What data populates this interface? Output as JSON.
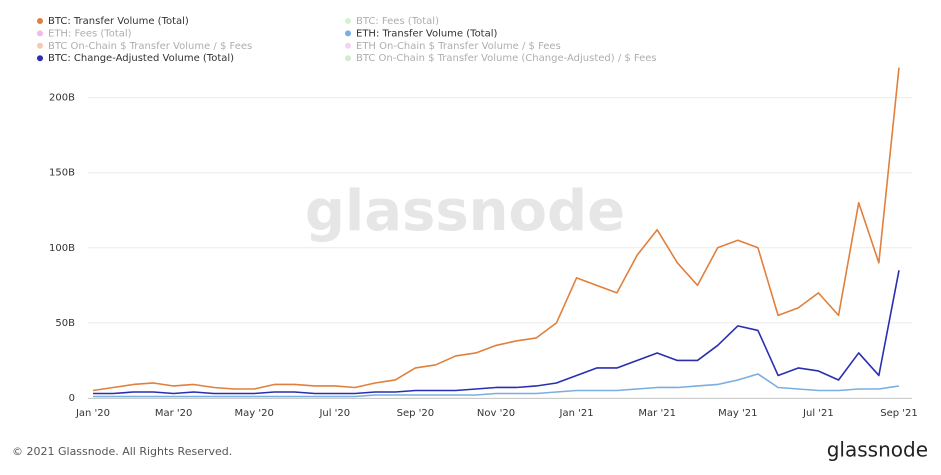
{
  "chart_data": {
    "type": "line",
    "watermark": "glassnode",
    "credit": "© 2021 Glassnode. All Rights Reserved.",
    "logo": "glassnode",
    "categories": [
      "Jan '20",
      null,
      null,
      null,
      "Mar '20",
      null,
      null,
      null,
      "May '20",
      null,
      null,
      null,
      "Jul '20",
      null,
      null,
      null,
      "Sep '20",
      null,
      null,
      null,
      "Nov '20",
      null,
      null,
      null,
      "Jan '21",
      null,
      null,
      null,
      "Mar '21",
      null,
      null,
      null,
      "May '21",
      null,
      null,
      null,
      "Jul '21",
      null,
      null,
      null,
      "Sep '21"
    ],
    "series": [
      {
        "name": "BTC: Transfer Volume (Total)",
        "color": "#e0803c",
        "values": [
          5,
          7,
          9,
          10,
          8,
          9,
          7,
          6,
          6,
          9,
          9,
          8,
          8,
          7,
          10,
          12,
          20,
          22,
          28,
          30,
          35,
          38,
          40,
          50,
          80,
          75,
          70,
          95,
          112,
          90,
          75,
          100,
          105,
          100,
          55,
          60,
          70,
          55,
          130,
          90,
          220
        ]
      },
      {
        "name": "BTC: Fees (Total)",
        "color": "#90e080",
        "hidden": true
      },
      {
        "name": "ETH: Fees (Total)",
        "color": "#d850d8",
        "hidden": true
      },
      {
        "name": "ETH: Transfer Volume (Total)",
        "color": "#7aaee0",
        "values": [
          1,
          1,
          1,
          1,
          1,
          1,
          1,
          1,
          1,
          1,
          1,
          1,
          1,
          1,
          2,
          2,
          2,
          2,
          2,
          2,
          3,
          3,
          3,
          4,
          5,
          5,
          5,
          6,
          7,
          7,
          8,
          9,
          12,
          16,
          7,
          6,
          5,
          5,
          6,
          6,
          8
        ]
      },
      {
        "name": "BTC On-Chain $ Transfer Volume / $ Fees",
        "color": "#e0803c",
        "hidden": true
      },
      {
        "name": "ETH On-Chain $ Transfer Volume / $ Fees",
        "color": "#e090e0",
        "hidden": true
      },
      {
        "name": "BTC: Change-Adjusted Volume (Total)",
        "color": "#2a2fb0",
        "values": [
          3,
          3,
          4,
          4,
          3,
          4,
          3,
          3,
          3,
          4,
          4,
          3,
          3,
          3,
          4,
          4,
          5,
          5,
          5,
          6,
          7,
          7,
          8,
          10,
          15,
          20,
          20,
          25,
          30,
          25,
          25,
          35,
          48,
          45,
          15,
          20,
          18,
          12,
          30,
          15,
          85
        ]
      },
      {
        "name": "BTC On-Chain $ Transfer Volume (Change-Adjusted) / $ Fees",
        "color": "#90d080",
        "hidden": true
      }
    ],
    "ylim": [
      0,
      245
    ],
    "yticks": [
      0,
      {
        "value": 50,
        "label": "50B"
      },
      {
        "value": 100,
        "label": "100B"
      },
      {
        "value": 150,
        "label": "150B"
      },
      {
        "value": 200,
        "label": "200B"
      }
    ],
    "grid": true
  }
}
